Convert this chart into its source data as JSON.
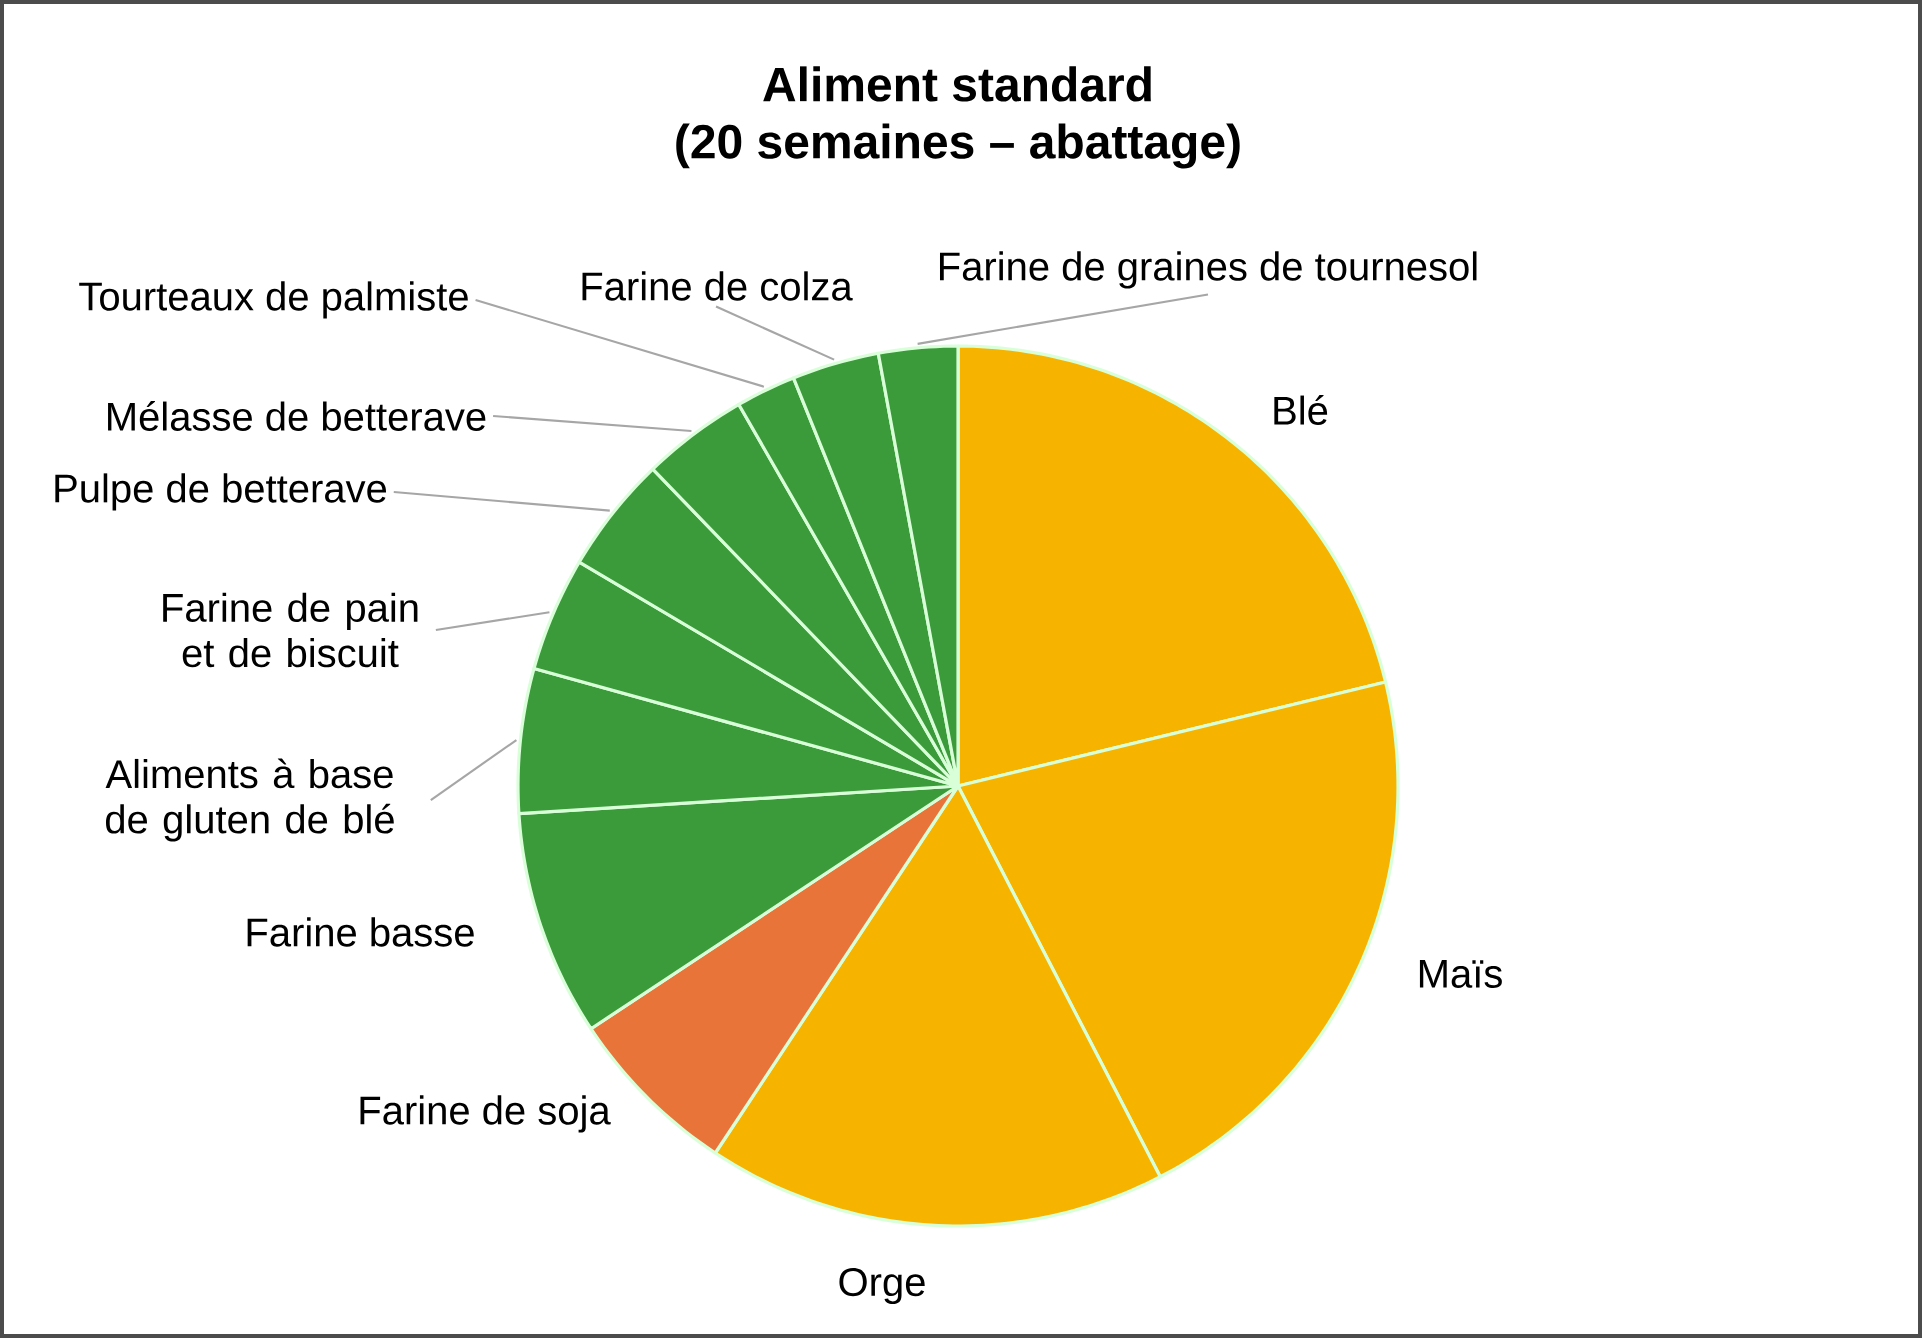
{
  "chart_data": {
    "type": "pie",
    "title": "Aliment standard",
    "subtitle": "(20 semaines – abattage)",
    "categories": [
      "Blé",
      "Maïs",
      "Orge",
      "Farine de soja",
      "Farine basse",
      "Aliments à base de gluten de blé",
      "Farine de pain et de biscuit",
      "Pulpe de betterave",
      "Mélasse de betterave",
      "Tourteaux de palmiste",
      "Farine de colza",
      "Farine de graines de tournesol"
    ],
    "values": [
      21.2,
      21.2,
      16.9,
      6.4,
      8.3,
      5.3,
      4.2,
      4.3,
      3.9,
      2.2,
      3.2,
      2.9
    ],
    "colors": [
      "#f6b400",
      "#f6b400",
      "#f6b400",
      "#e9743a",
      "#3b9b3a",
      "#3b9b3a",
      "#3b9b3a",
      "#3b9b3a",
      "#3b9b3a",
      "#3b9b3a",
      "#3b9b3a",
      "#3b9b3a"
    ]
  }
}
